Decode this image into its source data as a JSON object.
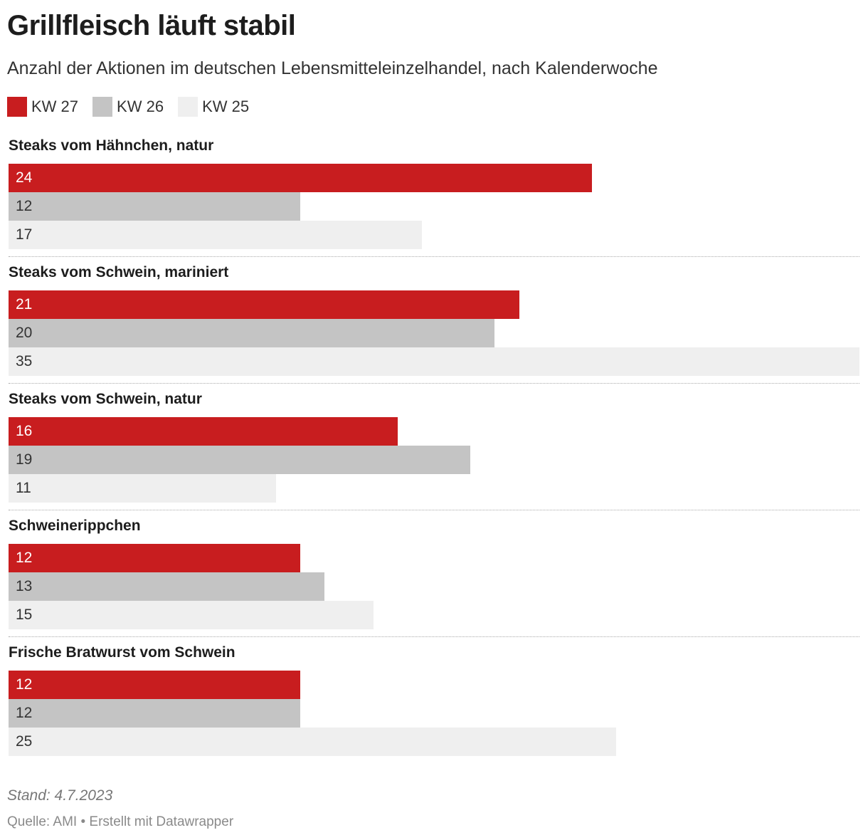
{
  "header": {
    "title": "Grillfleisch läuft stabil",
    "subtitle": "Anzahl der Aktionen im deutschen Lebensmitteleinzelhandel, nach Kalenderwoche"
  },
  "legend": [
    {
      "label": "KW 27",
      "color": "#c81d1f"
    },
    {
      "label": "KW 26",
      "color": "#c4c4c4"
    },
    {
      "label": "KW 25",
      "color": "#efefef"
    }
  ],
  "chart_data": {
    "type": "bar",
    "orientation": "horizontal",
    "title": "Grillfleisch läuft stabil",
    "subtitle": "Anzahl der Aktionen im deutschen Lebensmitteleinzelhandel, nach Kalenderwoche",
    "categories": [
      "Steaks vom Hähnchen, natur",
      "Steaks vom Schwein, mariniert",
      "Steaks vom Schwein, natur",
      "Schweinerippchen",
      "Frische Bratwurst vom Schwein"
    ],
    "series": [
      {
        "name": "KW 27",
        "color": "#c81d1f",
        "label_color": "#ffffff",
        "values": [
          24,
          21,
          16,
          12,
          12
        ]
      },
      {
        "name": "KW 26",
        "color": "#c4c4c4",
        "label_color": "#333333",
        "values": [
          12,
          20,
          19,
          13,
          12
        ]
      },
      {
        "name": "KW 25",
        "color": "#efefef",
        "label_color": "#333333",
        "values": [
          17,
          35,
          11,
          15,
          25
        ]
      }
    ],
    "xlim": [
      0,
      35
    ],
    "grid": false,
    "legend_position": "top-left"
  },
  "footer": {
    "note": "Stand: 4.7.2023",
    "source": "Quelle: AMI • Erstellt mit Datawrapper"
  }
}
